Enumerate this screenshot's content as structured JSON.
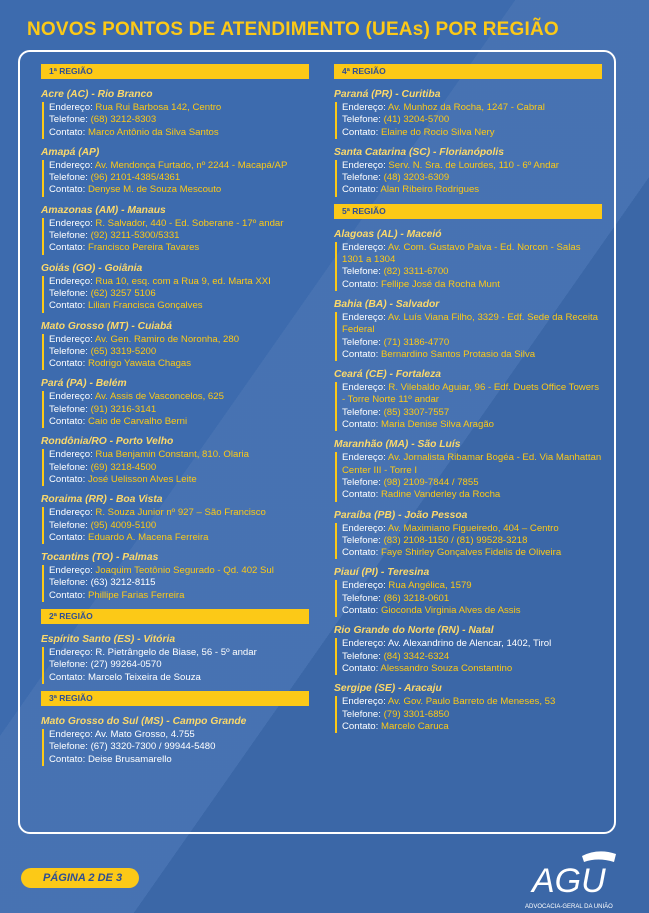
{
  "title": "NOVOS PONTOS DE ATENDIMENTO (UEAs) POR REGIÃO",
  "columns": [
    {
      "regions": [
        {
          "label": "1ª REGIÃO",
          "entries": [
            {
              "title": "Acre (AC) - Rio Branco",
              "lines": [
                {
                  "label": "Endereço:",
                  "value": "Rua Rui Barbosa 142, Centro",
                  "hl": true
                },
                {
                  "label": "Telefone:",
                  "value": "(68) 3212-8303",
                  "hl": true
                },
                {
                  "label": "Contato:",
                  "value": "Marco Antônio da Silva Santos",
                  "hl": true
                }
              ]
            },
            {
              "title": "Amapá (AP)",
              "lines": [
                {
                  "label": "Endereço:",
                  "value": "Av. Mendonça Furtado, nº 2244 - Macapá/AP",
                  "hl": true
                },
                {
                  "label": "Telefone:",
                  "value": "(96) 2101-4385/4361",
                  "hl": true
                },
                {
                  "label": "Contato:",
                  "value": "Denyse M. de Souza Mescouto",
                  "hl": true
                }
              ]
            },
            {
              "title": "Amazonas (AM) - Manaus",
              "lines": [
                {
                  "label": "Endereço:",
                  "value": "R. Salvador, 440 - Ed. Soberane - 17º andar",
                  "hl": true
                },
                {
                  "label": "Telefone:",
                  "value": "(92) 3211-5300/5331",
                  "hl": true
                },
                {
                  "label": "Contato:",
                  "value": "Francisco Pereira Tavares",
                  "hl": true
                }
              ]
            },
            {
              "title": "Goiás (GO) - Goiânia",
              "lines": [
                {
                  "label": "Endereço:",
                  "value": "Rua 10, esq. com a Rua 9, ed. Marta XXI",
                  "hl": true
                },
                {
                  "label": "Telefone:",
                  "value": "(62) 3257 5106",
                  "hl": true
                },
                {
                  "label": "Contato:",
                  "value": "Lilian Francisca Gonçalves",
                  "hl": true
                }
              ]
            },
            {
              "title": "Mato Grosso (MT) - Cuiabá",
              "lines": [
                {
                  "label": "Endereço:",
                  "value": "Av. Gen. Ramiro de Noronha, 280",
                  "hl": true
                },
                {
                  "label": "Telefone:",
                  "value": "(65) 3319-5200",
                  "hl": true
                },
                {
                  "label": "Contato:",
                  "value": "Rodrigo Yawata Chagas",
                  "hl": true
                }
              ]
            },
            {
              "title": "Pará (PA) - Belém",
              "lines": [
                {
                  "label": "Endereço:",
                  "value": "Av. Assis de Vasconcelos, 625",
                  "hl": true
                },
                {
                  "label": "Telefone:",
                  "value": "(91) 3216-3141",
                  "hl": true
                },
                {
                  "label": "Contato:",
                  "value": "Caio de Carvalho Berni",
                  "hl": true
                }
              ]
            },
            {
              "title": "Rondônia/RO - Porto Velho",
              "lines": [
                {
                  "label": "Endereço:",
                  "value": "Rua Benjamin Constant, 810. Olaria",
                  "hl": true
                },
                {
                  "label": "Telefone:",
                  "value": "(69) 3218-4500",
                  "hl": true
                },
                {
                  "label": "Contato:",
                  "value": "José Uelisson Alves Leite",
                  "hl": true
                }
              ]
            },
            {
              "title": "Roraima (RR) - Boa Vista",
              "lines": [
                {
                  "label": "Endereço:",
                  "value": "R. Souza Junior nº 927 – São Francisco",
                  "hl": true
                },
                {
                  "label": "Telefone:",
                  "value": "(95) 4009-5100",
                  "hl": true
                },
                {
                  "label": "Contato:",
                  "value": "Eduardo A. Macena Ferreira",
                  "hl": true
                }
              ]
            },
            {
              "title": "Tocantins (TO) - Palmas",
              "lines": [
                {
                  "label": "Endereço:",
                  "value": "Joaquim Teotônio Segurado - Qd. 402 Sul",
                  "hl": true
                },
                {
                  "label": "Telefone:",
                  "value": "(63) 3212-8115",
                  "hl": false
                },
                {
                  "label": "Contato:",
                  "value": "Phillipe Farias Ferreira",
                  "hl": true
                }
              ]
            }
          ]
        },
        {
          "label": "2ª REGIÃO",
          "entries": [
            {
              "title": "Espírito Santo (ES) - Vitória",
              "lines": [
                {
                  "label": "Endereço:",
                  "value": "R. Pietrângelo de Biase, 56 - 5º andar",
                  "hl": false
                },
                {
                  "label": "Telefone:",
                  "value": "(27) 99264-0570",
                  "hl": false
                },
                {
                  "label": "Contato:",
                  "value": "Marcelo Teixeira de Souza",
                  "hl": false
                }
              ]
            }
          ]
        },
        {
          "label": "3ª REGIÃO",
          "entries": [
            {
              "title": "Mato Grosso do Sul (MS) - Campo Grande",
              "lines": [
                {
                  "label": "Endereço:",
                  "value": "Av. Mato Grosso, 4.755",
                  "hl": false
                },
                {
                  "label": "Telefone:",
                  "value": "(67) 3320-7300 / 99944-5480",
                  "hl": false
                },
                {
                  "label": "Contato:",
                  "value": "Deise Brusamarello",
                  "hl": false
                }
              ]
            }
          ]
        }
      ]
    },
    {
      "regions": [
        {
          "label": "4ª REGIÃO",
          "entries": [
            {
              "title": "Paraná (PR) - Curitiba",
              "lines": [
                {
                  "label": "Endereço:",
                  "value": "Av. Munhoz da Rocha, 1247 - Cabral",
                  "hl": true
                },
                {
                  "label": "Telefone:",
                  "value": "(41) 3204-5700",
                  "hl": true
                },
                {
                  "label": "Contato:",
                  "value": "Elaine do Rocio Silva Nery",
                  "hl": true
                }
              ]
            },
            {
              "title": "Santa Catarina (SC) - Florianópolis",
              "lines": [
                {
                  "label": "Endereço:",
                  "value": "Serv. N. Sra. de Lourdes, 110 - 6º Andar",
                  "hl": true
                },
                {
                  "label": "Telefone:",
                  "value": "(48) 3203-6309",
                  "hl": true
                },
                {
                  "label": "Contato:",
                  "value": "Alan Ribeiro Rodrigues",
                  "hl": true
                }
              ]
            }
          ]
        },
        {
          "label": "5ª REGIÃO",
          "entries": [
            {
              "title": "Alagoas (AL) - Maceió",
              "lines": [
                {
                  "label": "Endereço:",
                  "value": "Av. Com. Gustavo Paiva - Ed. Norcon - Salas 1301 a 1304",
                  "hl": true
                },
                {
                  "label": "Telefone:",
                  "value": "(82) 3311-6700",
                  "hl": true
                },
                {
                  "label": "Contato:",
                  "value": "Fellipe José da Rocha Munt",
                  "hl": true
                }
              ]
            },
            {
              "title": "Bahia (BA) - Salvador",
              "lines": [
                {
                  "label": "Endereço:",
                  "value": "Av. Luís Viana Filho, 3329 - Edf. Sede da Receita Federal",
                  "hl": true
                },
                {
                  "label": "Telefone:",
                  "value": "(71) 3186-4770",
                  "hl": true
                },
                {
                  "label": "Contato:",
                  "value": "Bernardino Santos Protasio da Silva",
                  "hl": true
                }
              ]
            },
            {
              "title": "Ceará (CE) - Fortaleza",
              "lines": [
                {
                  "label": "Endereço:",
                  "value": "R. Vilebaldo Aguiar, 96 - Edf. Duets Office Towers - Torre Norte 11º andar",
                  "hl": true
                },
                {
                  "label": "Telefone:",
                  "value": "(85) 3307-7557",
                  "hl": true
                },
                {
                  "label": "Contato:",
                  "value": "Maria Denise Silva Aragão",
                  "hl": true
                }
              ]
            },
            {
              "title": "Maranhão (MA) - São Luís",
              "lines": [
                {
                  "label": "Endereço:",
                  "value": "Av. Jornalista Ribamar Bogéa - Ed. Via Manhattan Center III - Torre I",
                  "hl": true
                },
                {
                  "label": "Telefone:",
                  "value": "(98) 2109-7844 / 7855",
                  "hl": true
                },
                {
                  "label": "Contato:",
                  "value": "Radine Vanderley da Rocha",
                  "hl": true
                }
              ]
            },
            {
              "title": "Paraíba (PB) - João Pessoa",
              "lines": [
                {
                  "label": "Endereço:",
                  "value": "Av. Maximiano Figueiredo, 404 – Centro",
                  "hl": true
                },
                {
                  "label": "Telefone:",
                  "value": "(83) 2108-1150 / (81) 99528-3218",
                  "hl": true
                },
                {
                  "label": "Contato:",
                  "value": "Faye Shirley Gonçalves Fidelis de Oliveira",
                  "hl": true
                }
              ]
            },
            {
              "title": "Piauí (PI) - Teresina",
              "lines": [
                {
                  "label": "Endereço:",
                  "value": "Rua Angélica, 1579",
                  "hl": true
                },
                {
                  "label": "Telefone:",
                  "value": "(86) 3218-0601",
                  "hl": true
                },
                {
                  "label": "Contato:",
                  "value": "Gioconda Virginia Alves de Assis",
                  "hl": true
                }
              ]
            },
            {
              "title": "Rio Grande do Norte (RN) - Natal",
              "lines": [
                {
                  "label": "Endereço:",
                  "value": "Av. Alexandrino de Alencar, 1402, Tirol",
                  "hl": false
                },
                {
                  "label": "Telefone:",
                  "value": "(84) 3342-6324",
                  "hl": true
                },
                {
                  "label": "Contato:",
                  "value": "Alessandro Souza Constantino",
                  "hl": true
                }
              ]
            },
            {
              "title": "Sergipe (SE) - Aracaju",
              "lines": [
                {
                  "label": "Endereço:",
                  "value": "Av. Gov. Paulo Barreto de Meneses, 53",
                  "hl": true
                },
                {
                  "label": "Telefone:",
                  "value": "(79) 3301-6850",
                  "hl": true
                },
                {
                  "label": "Contato:",
                  "value": "Marcelo Caruca",
                  "hl": true
                }
              ]
            }
          ]
        }
      ]
    }
  ],
  "footer": {
    "page_label": "PÁGINA 2 DE 3",
    "logo_text": "AGU",
    "logo_caption": "ADVOCACIA-GERAL DA UNIÃO"
  },
  "colors": {
    "background": "#3d6bae",
    "accent": "#fcc917",
    "header_text": "#2f4f93"
  }
}
